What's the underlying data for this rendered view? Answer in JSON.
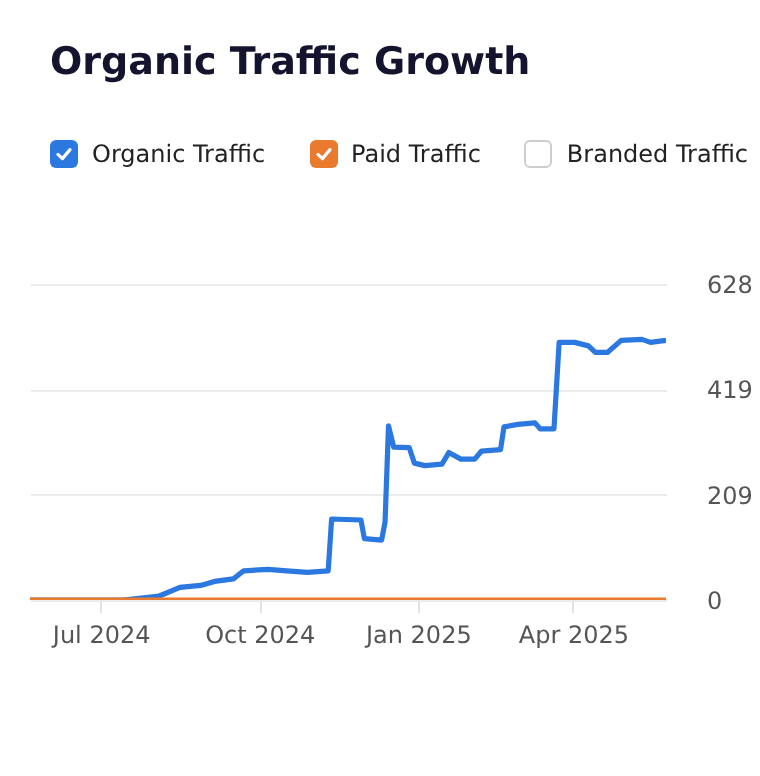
{
  "chart_data": {
    "type": "line",
    "title": "Organic Traffic Growth",
    "x": [
      "2024-05-21",
      "2024-07-14",
      "2024-08-04",
      "2024-08-16",
      "2024-08-28",
      "2024-09-05",
      "2024-09-16",
      "2024-09-22",
      "2024-10-06",
      "2024-10-17",
      "2024-10-29",
      "2024-11-10",
      "2024-11-12",
      "2024-11-29",
      "2024-12-01",
      "2024-12-11",
      "2024-12-13",
      "2024-12-15",
      "2024-12-18",
      "2024-12-27",
      "2024-12-30",
      "2025-01-05",
      "2025-01-15",
      "2025-01-19",
      "2025-01-26",
      "2025-02-03",
      "2025-02-07",
      "2025-02-18",
      "2025-02-20",
      "2025-02-28",
      "2025-03-10",
      "2025-03-13",
      "2025-03-21",
      "2025-03-24",
      "2025-04-02",
      "2025-04-10",
      "2025-04-14",
      "2025-04-21",
      "2025-04-29",
      "2025-05-11",
      "2025-05-16",
      "2025-05-25"
    ],
    "series": [
      {
        "name": "Organic Traffic",
        "color": "#2b78e0",
        "values": [
          0,
          0,
          8,
          25,
          29,
          37,
          42,
          58,
          61,
          58,
          55,
          58,
          161,
          159,
          122,
          119,
          155,
          346,
          304,
          303,
          272,
          267,
          270,
          293,
          280,
          280,
          296,
          299,
          344,
          349,
          352,
          340,
          340,
          512,
          512,
          505,
          492,
          492,
          516,
          518,
          512,
          516
        ]
      },
      {
        "name": "Paid Traffic",
        "color": "#ea7a2e",
        "values": [
          0,
          0,
          0,
          0,
          0,
          0,
          0,
          0,
          0,
          0,
          0,
          0,
          0,
          0,
          0,
          0,
          0,
          0,
          0,
          0,
          0,
          0,
          0,
          0,
          0,
          0,
          0,
          0,
          0,
          0,
          0,
          0,
          0,
          0,
          0,
          0,
          0,
          0,
          0,
          0,
          0,
          0
        ]
      },
      {
        "name": "Branded Traffic",
        "values": [
          null,
          null,
          null,
          null,
          null,
          null,
          null,
          null,
          null,
          null,
          null,
          null,
          null,
          null,
          null,
          null,
          null,
          null,
          null,
          null,
          null,
          null,
          null,
          null,
          null,
          null,
          null,
          null,
          null,
          null,
          null,
          null,
          null,
          null,
          null,
          null,
          null,
          null,
          null,
          null,
          null,
          null
        ]
      }
    ],
    "xlim": [
      "2024-05-21",
      "2025-05-25"
    ],
    "xticks": [
      {
        "value": "2024-07-01",
        "label": "Jul 2024"
      },
      {
        "value": "2024-10-01",
        "label": "Oct 2024"
      },
      {
        "value": "2025-01-01",
        "label": "Jan 2025"
      },
      {
        "value": "2025-04-01",
        "label": "Apr 2025"
      }
    ],
    "ylim": [
      0,
      628
    ],
    "yticks": [
      0,
      209,
      419,
      628
    ],
    "grid": "y",
    "legend": "top",
    "marker": "none",
    "line_style": "solid"
  }
}
